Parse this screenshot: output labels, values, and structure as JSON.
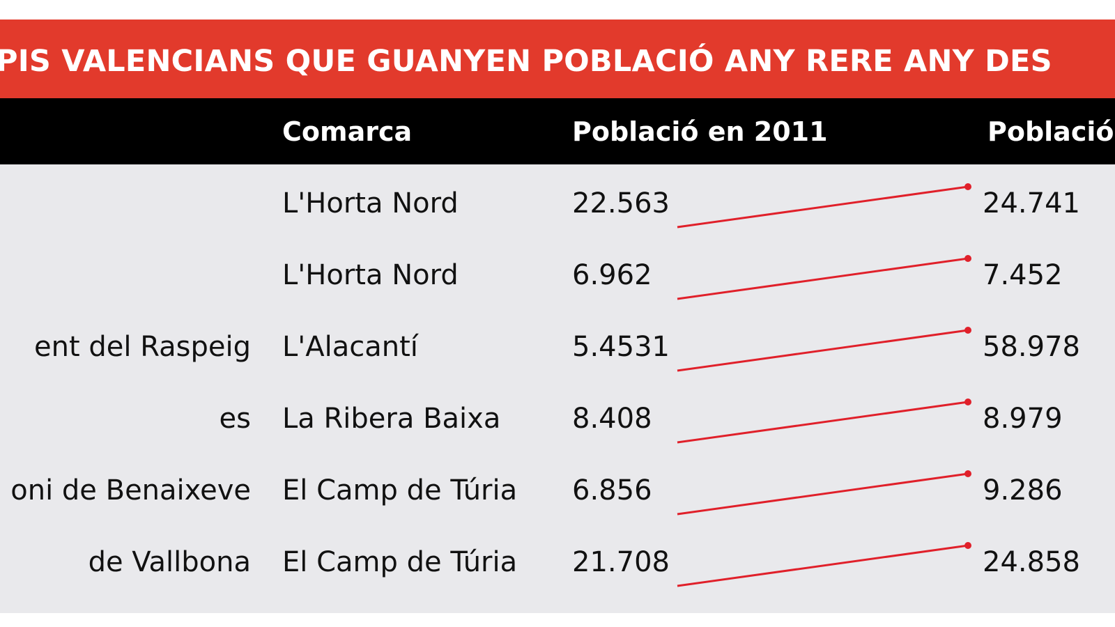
{
  "title": "PIS VALENCIANS QUE GUANYEN POBLACIÓ ANY RERE ANY DES",
  "header": {
    "comarca": "Comarca",
    "poblacio_2011": "Població en 2011",
    "poblacio_right": "Població"
  },
  "rows": [
    {
      "municipi": "",
      "comarca": "L'Horta Nord",
      "p2011": "22.563",
      "p_right": "24.741"
    },
    {
      "municipi": "",
      "comarca": "L'Horta Nord",
      "p2011": "6.962",
      "p_right": "7.452"
    },
    {
      "municipi": "ent del Raspeig",
      "comarca": "L'Alacantí",
      "p2011": "5.4531",
      "p_right": "58.978"
    },
    {
      "municipi": "es",
      "comarca": "La Ribera Baixa",
      "p2011": "8.408",
      "p_right": "8.979"
    },
    {
      "municipi": "oni de Benaixeve",
      "comarca": "El Camp de Túria",
      "p2011": "6.856",
      "p_right": "9.286"
    },
    {
      "municipi": "de Vallbona",
      "comarca": "El Camp de Túria",
      "p2011": "21.708",
      "p_right": "24.858"
    }
  ],
  "colors": {
    "accent": "#e23a2c",
    "header_bg": "#000000",
    "body_bg": "#e9e9ec",
    "line": "#e0202a"
  },
  "chart_data": {
    "type": "table",
    "columns": [
      "",
      "Comarca",
      "Població en 2011",
      "Població"
    ],
    "rows": [
      [
        "",
        "L'Horta Nord",
        "22.563",
        "24.741"
      ],
      [
        "",
        "L'Horta Nord",
        "6.962",
        "7.452"
      ],
      [
        "ent del Raspeig",
        "L'Alacantí",
        "5.4531",
        "58.978"
      ],
      [
        "es",
        "La Ribera Baixa",
        "8.408",
        "8.979"
      ],
      [
        "oni de Benaixeve",
        "El Camp de Túria",
        "6.856",
        "9.286"
      ],
      [
        "de Vallbona",
        "El Camp de Túria",
        "21.708",
        "24.858"
      ]
    ]
  }
}
